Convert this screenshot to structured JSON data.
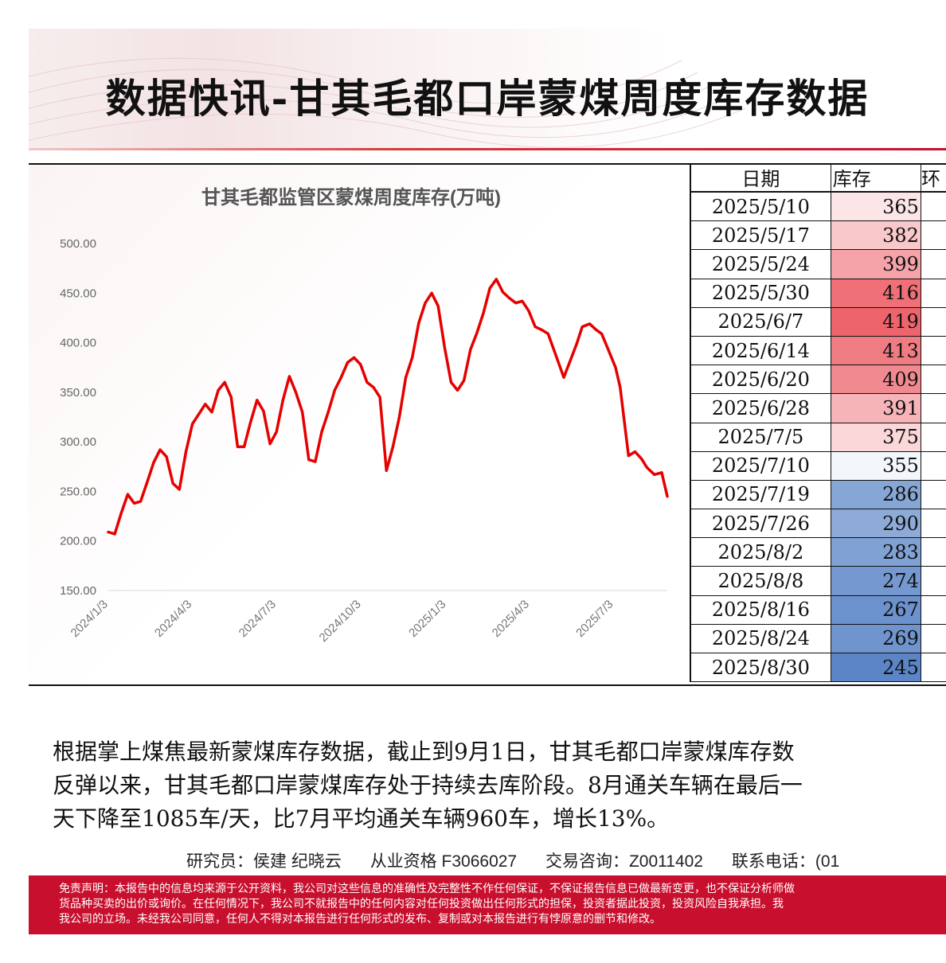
{
  "title": "数据快讯-甘其毛都口岸蒙煤周度库存数据",
  "chart_data": {
    "type": "line",
    "title": "甘其毛都监管区蒙煤周度库存(万吨)",
    "xlabel": "",
    "ylabel": "",
    "ylim": [
      150,
      500
    ],
    "yticks": [
      "500.00",
      "450.00",
      "400.00",
      "350.00",
      "300.00",
      "250.00",
      "200.00",
      "150.00"
    ],
    "xticks": [
      "2024/1/3",
      "2024/4/3",
      "2024/7/3",
      "2024/10/3",
      "2025/1/3",
      "2025/4/3",
      "2025/7/3"
    ],
    "grid": false,
    "legend": "none",
    "line_color": "#e60000",
    "series": [
      {
        "x": [
          "2024-01-03",
          "2024-01-10",
          "2024-01-17",
          "2024-01-24",
          "2024-01-31",
          "2024-02-07",
          "2024-02-14",
          "2024-02-21",
          "2024-02-28",
          "2024-03-06",
          "2024-03-13",
          "2024-03-20",
          "2024-03-27",
          "2024-04-03",
          "2024-04-10",
          "2024-04-17",
          "2024-04-24",
          "2024-05-01",
          "2024-05-08",
          "2024-05-15",
          "2024-05-22",
          "2024-05-29",
          "2024-06-05",
          "2024-06-12",
          "2024-06-19",
          "2024-06-26",
          "2024-07-03",
          "2024-07-10",
          "2024-07-17",
          "2024-07-24",
          "2024-07-31",
          "2024-08-07",
          "2024-08-14",
          "2024-08-21",
          "2024-08-28",
          "2024-09-04",
          "2024-09-11",
          "2024-09-18",
          "2024-09-25",
          "2024-10-02",
          "2024-10-09",
          "2024-10-16",
          "2024-10-23",
          "2024-10-30",
          "2024-11-06",
          "2024-11-13",
          "2024-11-20",
          "2024-11-27",
          "2024-12-04",
          "2024-12-11",
          "2024-12-18",
          "2024-12-25",
          "2025-01-01",
          "2025-01-08",
          "2025-01-15",
          "2025-01-22",
          "2025-01-29",
          "2025-02-05",
          "2025-02-12",
          "2025-02-19",
          "2025-02-26",
          "2025-03-05",
          "2025-03-12",
          "2025-03-19",
          "2025-03-26",
          "2025-04-02",
          "2025-04-09",
          "2025-04-16",
          "2025-04-23",
          "2025-04-30",
          "2025-05-10",
          "2025-05-17",
          "2025-05-24",
          "2025-05-30",
          "2025-06-07",
          "2025-06-14",
          "2025-06-20",
          "2025-06-28",
          "2025-07-05",
          "2025-07-10",
          "2025-07-19",
          "2025-07-26",
          "2025-08-02",
          "2025-08-08",
          "2025-08-16",
          "2025-08-24",
          "2025-08-30"
        ],
        "values": [
          209,
          207,
          228,
          247,
          238,
          240,
          259,
          279,
          292,
          285,
          258,
          252,
          290,
          318,
          328,
          338,
          330,
          352,
          360,
          345,
          295,
          295,
          320,
          342,
          331,
          298,
          310,
          342,
          366,
          350,
          330,
          282,
          280,
          310,
          330,
          352,
          365,
          380,
          385,
          378,
          360,
          355,
          345,
          271,
          295,
          325,
          365,
          385,
          420,
          440,
          450,
          437,
          395,
          360,
          352,
          362,
          393,
          410,
          430,
          455,
          464,
          451,
          445,
          440,
          442,
          432,
          416,
          413,
          409,
          391,
          365,
          382,
          399,
          416,
          419,
          413,
          409,
          391,
          375,
          355,
          286,
          290,
          283,
          274,
          267,
          269,
          245
        ]
      }
    ]
  },
  "table": {
    "headers": [
      "日期",
      "库存",
      "环"
    ],
    "rows": [
      {
        "date": "2025/5/10",
        "value": "365",
        "color": "#fbe5e7"
      },
      {
        "date": "2025/5/17",
        "value": "382",
        "color": "#f8c8cb"
      },
      {
        "date": "2025/5/24",
        "value": "399",
        "color": "#f5a3a8"
      },
      {
        "date": "2025/5/30",
        "value": "416",
        "color": "#f07078"
      },
      {
        "date": "2025/6/7",
        "value": "419",
        "color": "#ee646d"
      },
      {
        "date": "2025/6/14",
        "value": "413",
        "color": "#f07c83"
      },
      {
        "date": "2025/6/20",
        "value": "409",
        "color": "#f18a90"
      },
      {
        "date": "2025/6/28",
        "value": "391",
        "color": "#f6b4b8"
      },
      {
        "date": "2025/7/5",
        "value": "375",
        "color": "#fad7d9"
      },
      {
        "date": "2025/7/10",
        "value": "355",
        "color": "#f3f6fb"
      },
      {
        "date": "2025/7/19",
        "value": "286",
        "color": "#86a6d6"
      },
      {
        "date": "2025/7/26",
        "value": "290",
        "color": "#8eabd8"
      },
      {
        "date": "2025/8/2",
        "value": "283",
        "color": "#80a1d4"
      },
      {
        "date": "2025/8/8",
        "value": "274",
        "color": "#7598d0"
      },
      {
        "date": "2025/8/16",
        "value": "267",
        "color": "#6c92cd"
      },
      {
        "date": "2025/8/24",
        "value": "269",
        "color": "#6f94ce"
      },
      {
        "date": "2025/8/30",
        "value": "245",
        "color": "#5b85c7"
      }
    ]
  },
  "body": {
    "line1": "根据掌上煤焦最新蒙煤库存数据，截止到9月1日，甘其毛都口岸蒙煤库存数",
    "line2": "反弹以来，甘其毛都口岸蒙煤库存处于持续去库阶段。8月通关车辆在最后一",
    "line3": "天下降至1085车/天，比7月平均通关车辆960车，增长13%。"
  },
  "analyst": {
    "researcher": "研究员：侯建 纪晓云",
    "license": "从业资格 F3066027",
    "consult": "交易咨询：Z0011402",
    "phone": "联系电话：(01"
  },
  "disclaimer": {
    "line1": "免责声明：本报告中的信息均来源于公开资料，我公司对这些信息的准确性及完整性不作任何保证，不保证报告信息已做最新变更，也不保证分析师做",
    "line2": "货品种买卖的出价或询价。在任何情况下，我公司不就报告中的任何内容对任何投资做出任何形式的担保，投资者据此投资，投资风险自我承担。我",
    "line3": "我公司的立场。未经我公司同意，任何人不得对本报告进行任何形式的发布、复制或对本报告进行有悖原意的删节和修改。"
  },
  "colors": {
    "brand_red": "#c8102e",
    "line_red": "#e60000"
  }
}
